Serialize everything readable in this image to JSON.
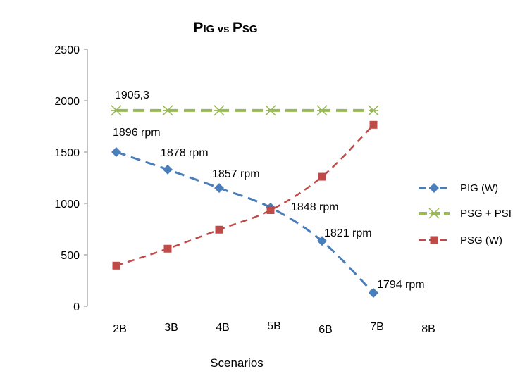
{
  "chart_data": {
    "type": "line",
    "title": {
      "p1_big": "P",
      "p1_small": "IG",
      "vs": "vs",
      "p2_big": "P",
      "p2_small": "SG"
    },
    "xlabel": "Scenarios",
    "ylabel": "",
    "categories": [
      "2B",
      "3B",
      "4B",
      "5B",
      "6B",
      "7B",
      "8B"
    ],
    "ylim": [
      0,
      2500
    ],
    "yticks": [
      0,
      500,
      1000,
      1500,
      2000,
      2500
    ],
    "grid": false,
    "legend_position": "right",
    "series": [
      {
        "name": "PIG  (W)",
        "color": "#4a7ebb",
        "marker": "diamond",
        "x": [
          0,
          1,
          2,
          3,
          4,
          5
        ],
        "values": [
          1500,
          1330,
          1150,
          960,
          635,
          130
        ]
      },
      {
        "name": "PSG + PSI",
        "color": "#98b954",
        "marker": "star",
        "x": [
          0,
          1,
          2,
          3,
          4,
          5
        ],
        "values": [
          1905.3,
          1905.3,
          1905.3,
          1905.3,
          1905.3,
          1905.3
        ]
      },
      {
        "name": "PSG (W)",
        "color": "#be4b48",
        "marker": "square",
        "x": [
          0,
          1,
          2,
          3,
          4,
          5
        ],
        "values": [
          395,
          560,
          745,
          935,
          1260,
          1765
        ]
      }
    ],
    "annotations": [
      "1905,3",
      "1896 rpm",
      "1878 rpm",
      "1857 rpm",
      "1848 rpm",
      "1821 rpm",
      "1794 rpm"
    ]
  }
}
